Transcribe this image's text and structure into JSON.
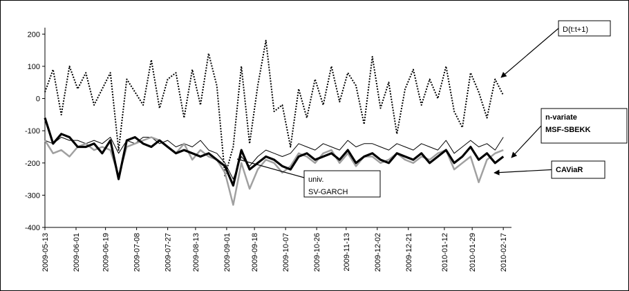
{
  "chart_data": {
    "type": "line",
    "x": [
      "2009-05-13",
      "2009-05-18",
      "2009-05-23",
      "2009-05-28",
      "2009-06-02",
      "2009-06-07",
      "2009-06-12",
      "2009-06-17",
      "2009-06-22",
      "2009-06-27",
      "2009-07-02",
      "2009-07-07",
      "2009-07-12",
      "2009-07-17",
      "2009-07-22",
      "2009-07-27",
      "2009-08-01",
      "2009-08-06",
      "2009-08-11",
      "2009-08-16",
      "2009-08-21",
      "2009-08-26",
      "2009-08-31",
      "2009-09-05",
      "2009-09-10",
      "2009-09-15",
      "2009-09-20",
      "2009-09-25",
      "2009-09-30",
      "2009-10-05",
      "2009-10-10",
      "2009-10-15",
      "2009-10-20",
      "2009-10-25",
      "2009-10-30",
      "2009-11-04",
      "2009-11-09",
      "2009-11-14",
      "2009-11-19",
      "2009-11-24",
      "2009-11-29",
      "2009-12-04",
      "2009-12-09",
      "2009-12-14",
      "2009-12-19",
      "2009-12-24",
      "2009-12-29",
      "2010-01-03",
      "2010-01-08",
      "2010-01-13",
      "2010-01-18",
      "2010-01-23",
      "2010-01-28",
      "2010-02-02",
      "2010-02-07",
      "2010-02-12",
      "2010-02-17"
    ],
    "xlim": [
      "2009-05-13",
      "2010-02-22"
    ],
    "xticks": [
      "2009-05-13",
      "2009-06-01",
      "2009-06-19",
      "2009-07-08",
      "2009-07-27",
      "2009-08-13",
      "2009-09-01",
      "2009-09-18",
      "2009-10-07",
      "2009-10-26",
      "2009-11-13",
      "2009-12-02",
      "2009-12-21",
      "2010-01-12",
      "2010-01-29",
      "2010-02-17"
    ],
    "ylim": [
      -400,
      220
    ],
    "yticks": [
      200,
      100,
      0,
      -100,
      -200,
      -300,
      -400
    ],
    "series": [
      {
        "label_lines": [
          "D(t:t+1)"
        ],
        "color": "#000000",
        "values": [
          20,
          90,
          -50,
          100,
          30,
          80,
          -20,
          30,
          80,
          -160,
          60,
          20,
          -20,
          120,
          -30,
          60,
          80,
          -60,
          90,
          -20,
          140,
          40,
          -240,
          -150,
          100,
          -140,
          40,
          180,
          -40,
          -20,
          -150,
          30,
          -60,
          60,
          -20,
          100,
          -10,
          80,
          40,
          -80,
          130,
          -30,
          50,
          -110,
          30,
          90,
          -20,
          60,
          0,
          100,
          -40,
          -90,
          80,
          20,
          -60,
          60,
          10
        ]
      },
      {
        "label_lines": [
          "n-variate",
          "MSF-SBEKK"
        ],
        "color": "#000000",
        "values": [
          -60,
          -140,
          -110,
          -120,
          -150,
          -150,
          -140,
          -170,
          -130,
          -250,
          -130,
          -120,
          -140,
          -150,
          -130,
          -150,
          -170,
          -160,
          -170,
          -180,
          -170,
          -190,
          -210,
          -270,
          -160,
          -220,
          -200,
          -180,
          -190,
          -210,
          -220,
          -180,
          -170,
          -190,
          -180,
          -170,
          -190,
          -160,
          -200,
          -180,
          -170,
          -190,
          -200,
          -170,
          -180,
          -190,
          -170,
          -200,
          -180,
          -160,
          -200,
          -180,
          -150,
          -190,
          -170,
          -200,
          -180
        ]
      },
      {
        "label_lines": [
          "univ.",
          "SV-GARCH"
        ],
        "color": "#000000",
        "values": [
          -130,
          -140,
          -120,
          -130,
          -130,
          -140,
          -130,
          -140,
          -120,
          -170,
          -130,
          -140,
          -120,
          -120,
          -140,
          -130,
          -150,
          -140,
          -150,
          -130,
          -160,
          -170,
          -200,
          -250,
          -180,
          -210,
          -180,
          -160,
          -170,
          -180,
          -170,
          -140,
          -150,
          -160,
          -140,
          -150,
          -160,
          -130,
          -150,
          -140,
          -140,
          -150,
          -160,
          -140,
          -150,
          -160,
          -140,
          -150,
          -160,
          -130,
          -170,
          -150,
          -130,
          -150,
          -140,
          -160,
          -120
        ]
      },
      {
        "label_lines": [
          "CAViaR"
        ],
        "color": "#a0a0a0",
        "values": [
          -130,
          -170,
          -160,
          -180,
          -150,
          -140,
          -160,
          -150,
          -160,
          -240,
          -150,
          -140,
          -130,
          -120,
          -130,
          -150,
          -170,
          -140,
          -190,
          -160,
          -180,
          -190,
          -230,
          -330,
          -200,
          -280,
          -220,
          -190,
          -200,
          -230,
          -210,
          -170,
          -180,
          -200,
          -170,
          -160,
          -200,
          -170,
          -210,
          -180,
          -180,
          -200,
          -190,
          -170,
          -190,
          -200,
          -180,
          -190,
          -170,
          -160,
          -220,
          -200,
          -180,
          -260,
          -190,
          -170,
          -160
        ]
      }
    ]
  }
}
